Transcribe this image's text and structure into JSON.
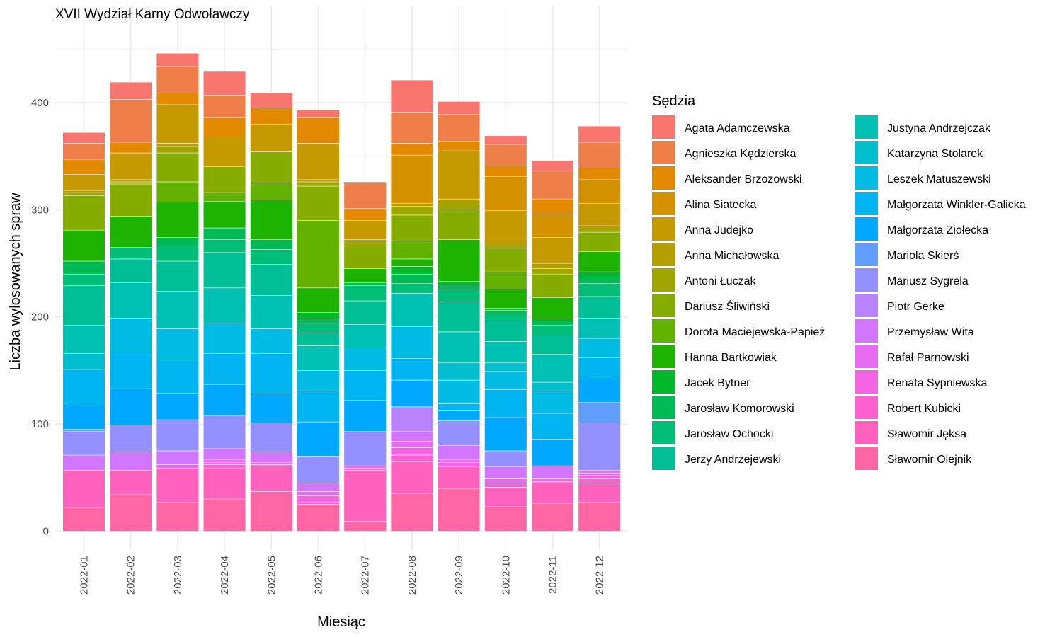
{
  "chart_data": {
    "type": "bar",
    "stacked": true,
    "title": "XVII Wydział Karny Odwoławczy",
    "xlabel": "Miesiąc",
    "ylabel": "Liczba wylosowanych spraw",
    "ylim": [
      0,
      475
    ],
    "yticks": [
      0,
      100,
      200,
      300,
      400
    ],
    "grid": true,
    "legend_title": "Sędzia",
    "legend_position": "right",
    "categories": [
      "2022-01",
      "2022-02",
      "2022-03",
      "2022-04",
      "2022-05",
      "2022-06",
      "2022-07",
      "2022-08",
      "2022-09",
      "2022-10",
      "2022-11",
      "2022-12"
    ],
    "series": [
      {
        "name": "Agata Adamczewska",
        "color": "#F8766D",
        "values": [
          10,
          16,
          12,
          22,
          14,
          7,
          1,
          30,
          12,
          8,
          10,
          15
        ]
      },
      {
        "name": "Agnieszka Kędzierska",
        "color": "#EF7F49",
        "values": [
          15,
          40,
          25,
          21,
          0,
          0,
          24,
          29,
          25,
          20,
          26,
          24
        ]
      },
      {
        "name": "Aleksander Brzozowski",
        "color": "#E38900",
        "values": [
          14,
          10,
          11,
          18,
          15,
          24,
          11,
          11,
          9,
          10,
          14,
          11
        ]
      },
      {
        "name": "Alina Siatecka",
        "color": "#D49200",
        "values": [
          0,
          0,
          0,
          0,
          0,
          0,
          0,
          45,
          0,
          32,
          22,
          22
        ]
      },
      {
        "name": "Anna Judejko",
        "color": "#C49A00",
        "values": [
          15,
          25,
          36,
          28,
          26,
          34,
          18,
          0,
          45,
          30,
          24,
          21
        ]
      },
      {
        "name": "Anna Michałowska",
        "color": "#B3A000",
        "values": [
          2,
          2,
          3,
          0,
          0,
          2,
          1,
          3,
          3,
          3,
          5,
          3
        ]
      },
      {
        "name": "Antoni Łuczak",
        "color": "#A0A600",
        "values": [
          3,
          2,
          6,
          0,
          0,
          4,
          5,
          8,
          7,
          2,
          5,
          3
        ]
      },
      {
        "name": "Dariusz Śliwiński",
        "color": "#87AC00",
        "values": [
          32,
          30,
          27,
          24,
          29,
          32,
          21,
          24,
          28,
          22,
          22,
          18
        ]
      },
      {
        "name": "Dorota Maciejewska-Papież",
        "color": "#64B200",
        "values": [
          0,
          0,
          19,
          8,
          16,
          63,
          0,
          17,
          0,
          16,
          0,
          0
        ]
      },
      {
        "name": "Hanna Bartkowiak",
        "color": "#1CB400",
        "values": [
          29,
          29,
          33,
          25,
          37,
          23,
          13,
          7,
          39,
          18,
          20,
          19
        ]
      },
      {
        "name": "Jacek Bytner",
        "color": "#00B82A",
        "values": [
          0,
          0,
          0,
          0,
          0,
          6,
          0,
          7,
          3,
          2,
          2,
          5
        ]
      },
      {
        "name": "Jarosław Komorowski",
        "color": "#00BA55",
        "values": [
          12,
          0,
          8,
          11,
          9,
          4,
          3,
          9,
          4,
          3,
          4,
          6
        ]
      },
      {
        "name": "Jarosław Ochocki",
        "color": "#00BD77",
        "values": [
          11,
          11,
          14,
          12,
          14,
          9,
          14,
          9,
          12,
          7,
          9,
          12
        ]
      },
      {
        "name": "Jerzy Andrzejewski",
        "color": "#00BF96",
        "values": [
          37,
          22,
          28,
          33,
          29,
          12,
          22,
          0,
          28,
          19,
          18,
          20
        ]
      },
      {
        "name": "Justyna Andrzejczak",
        "color": "#00C0B3",
        "values": [
          26,
          33,
          35,
          33,
          31,
          23,
          22,
          31,
          29,
          20,
          26,
          19
        ]
      },
      {
        "name": "Katarzyna Stolarek",
        "color": "#00BECD",
        "values": [
          15,
          0,
          0,
          0,
          0,
          0,
          0,
          0,
          16,
          8,
          8,
          0
        ]
      },
      {
        "name": "Leszek Matuszewski",
        "color": "#00BBE3",
        "values": [
          0,
          32,
          31,
          28,
          23,
          19,
          21,
          30,
          22,
          17,
          21,
          18
        ]
      },
      {
        "name": "Małgorzata Winkler-Galicka",
        "color": "#00B4F0",
        "values": [
          34,
          34,
          29,
          29,
          38,
          29,
          28,
          20,
          6,
          26,
          24,
          20
        ]
      },
      {
        "name": "Małgorzata Ziołecka",
        "color": "#00A9FF",
        "values": [
          22,
          34,
          25,
          29,
          27,
          32,
          29,
          25,
          10,
          31,
          25,
          22
        ]
      },
      {
        "name": "Mariola Skierś",
        "color": "#619CFF",
        "values": [
          2,
          0,
          0,
          0,
          0,
          0,
          0,
          0,
          0,
          0,
          0,
          19
        ]
      },
      {
        "name": "Mariusz Sygrela",
        "color": "#9590FF",
        "values": [
          22,
          25,
          29,
          31,
          27,
          25,
          32,
          0,
          23,
          15,
          0,
          44
        ]
      },
      {
        "name": "Piotr Gerke",
        "color": "#B983FF",
        "values": [
          0,
          0,
          0,
          0,
          0,
          0,
          0,
          23,
          0,
          0,
          0,
          0
        ]
      },
      {
        "name": "Przemysław Wita",
        "color": "#D376FF",
        "values": [
          14,
          17,
          13,
          10,
          10,
          8,
          0,
          9,
          13,
          11,
          12,
          3
        ]
      },
      {
        "name": "Rafał Parnowski",
        "color": "#E66BF1",
        "values": [
          0,
          0,
          3,
          3,
          2,
          4,
          2,
          6,
          3,
          4,
          2,
          2
        ]
      },
      {
        "name": "Renata Sypniewska",
        "color": "#F564E3",
        "values": [
          0,
          0,
          0,
          2,
          1,
          6,
          2,
          7,
          4,
          4,
          1,
          3
        ]
      },
      {
        "name": "Robert Kubicki",
        "color": "#FE60CF",
        "values": [
          0,
          0,
          0,
          3,
          0,
          2,
          0,
          6,
          0,
          0,
          0,
          4
        ]
      },
      {
        "name": "Sławomir Jęksa",
        "color": "#FF62BC",
        "values": [
          35,
          23,
          32,
          29,
          24,
          0,
          48,
          30,
          20,
          18,
          20,
          18
        ]
      },
      {
        "name": "Sławomir Olejnik",
        "color": "#FF67A4",
        "values": [
          22,
          34,
          27,
          30,
          37,
          25,
          9,
          35,
          40,
          23,
          26,
          27
        ]
      }
    ]
  }
}
